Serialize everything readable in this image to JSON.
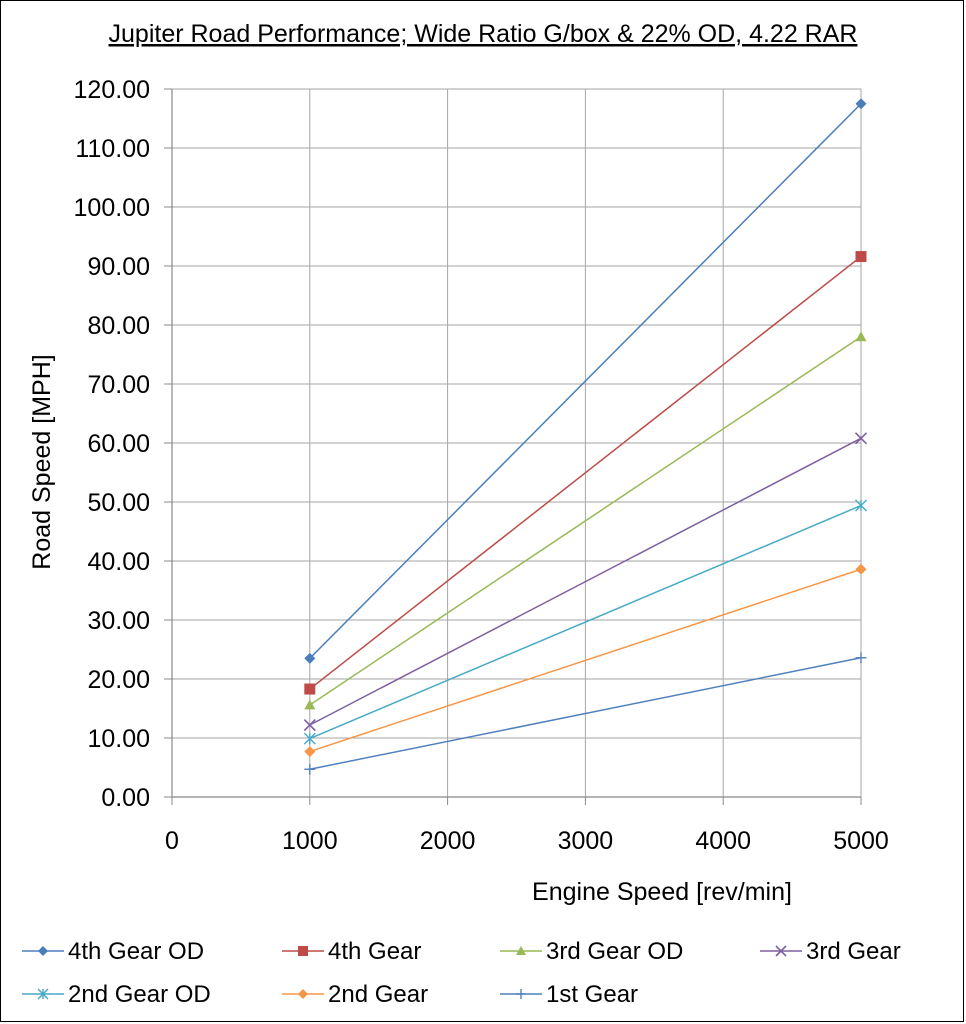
{
  "chart_data": {
    "type": "line",
    "title": "Jupiter Road Performance; Wide Ratio G/box & 22% OD, 4.22 RAR",
    "xlabel": "Engine Speed [rev/min]",
    "ylabel": "Road Speed [MPH]",
    "xlim": [
      0,
      5000
    ],
    "ylim": [
      0,
      120
    ],
    "x_ticks": [
      "0",
      "1000",
      "2000",
      "3000",
      "4000",
      "5000"
    ],
    "y_ticks": [
      "0.00",
      "10.00",
      "20.00",
      "30.00",
      "40.00",
      "50.00",
      "60.00",
      "70.00",
      "80.00",
      "90.00",
      "100.00",
      "110.00",
      "120.00"
    ],
    "grid": true,
    "legend_position": "bottom",
    "x": [
      1000,
      5000
    ],
    "series": [
      {
        "name": "4th Gear OD",
        "values": [
          23.5,
          117.5
        ],
        "color": "#4a7ebb",
        "marker": "diamond"
      },
      {
        "name": "4th Gear",
        "values": [
          18.3,
          91.6
        ],
        "color": "#be4b48",
        "marker": "square"
      },
      {
        "name": "3rd Gear OD",
        "values": [
          15.6,
          78.0
        ],
        "color": "#98b954",
        "marker": "triangle"
      },
      {
        "name": "3rd Gear",
        "values": [
          12.2,
          60.8
        ],
        "color": "#7d60a0",
        "marker": "x"
      },
      {
        "name": "2nd Gear OD",
        "values": [
          9.9,
          49.4
        ],
        "color": "#46aac5",
        "marker": "star"
      },
      {
        "name": "2nd Gear",
        "values": [
          7.7,
          38.6
        ],
        "color": "#f79646",
        "marker": "diamond"
      },
      {
        "name": "1st Gear",
        "values": [
          4.7,
          23.6
        ],
        "color": "#4f81bd",
        "marker": "plus"
      }
    ]
  }
}
